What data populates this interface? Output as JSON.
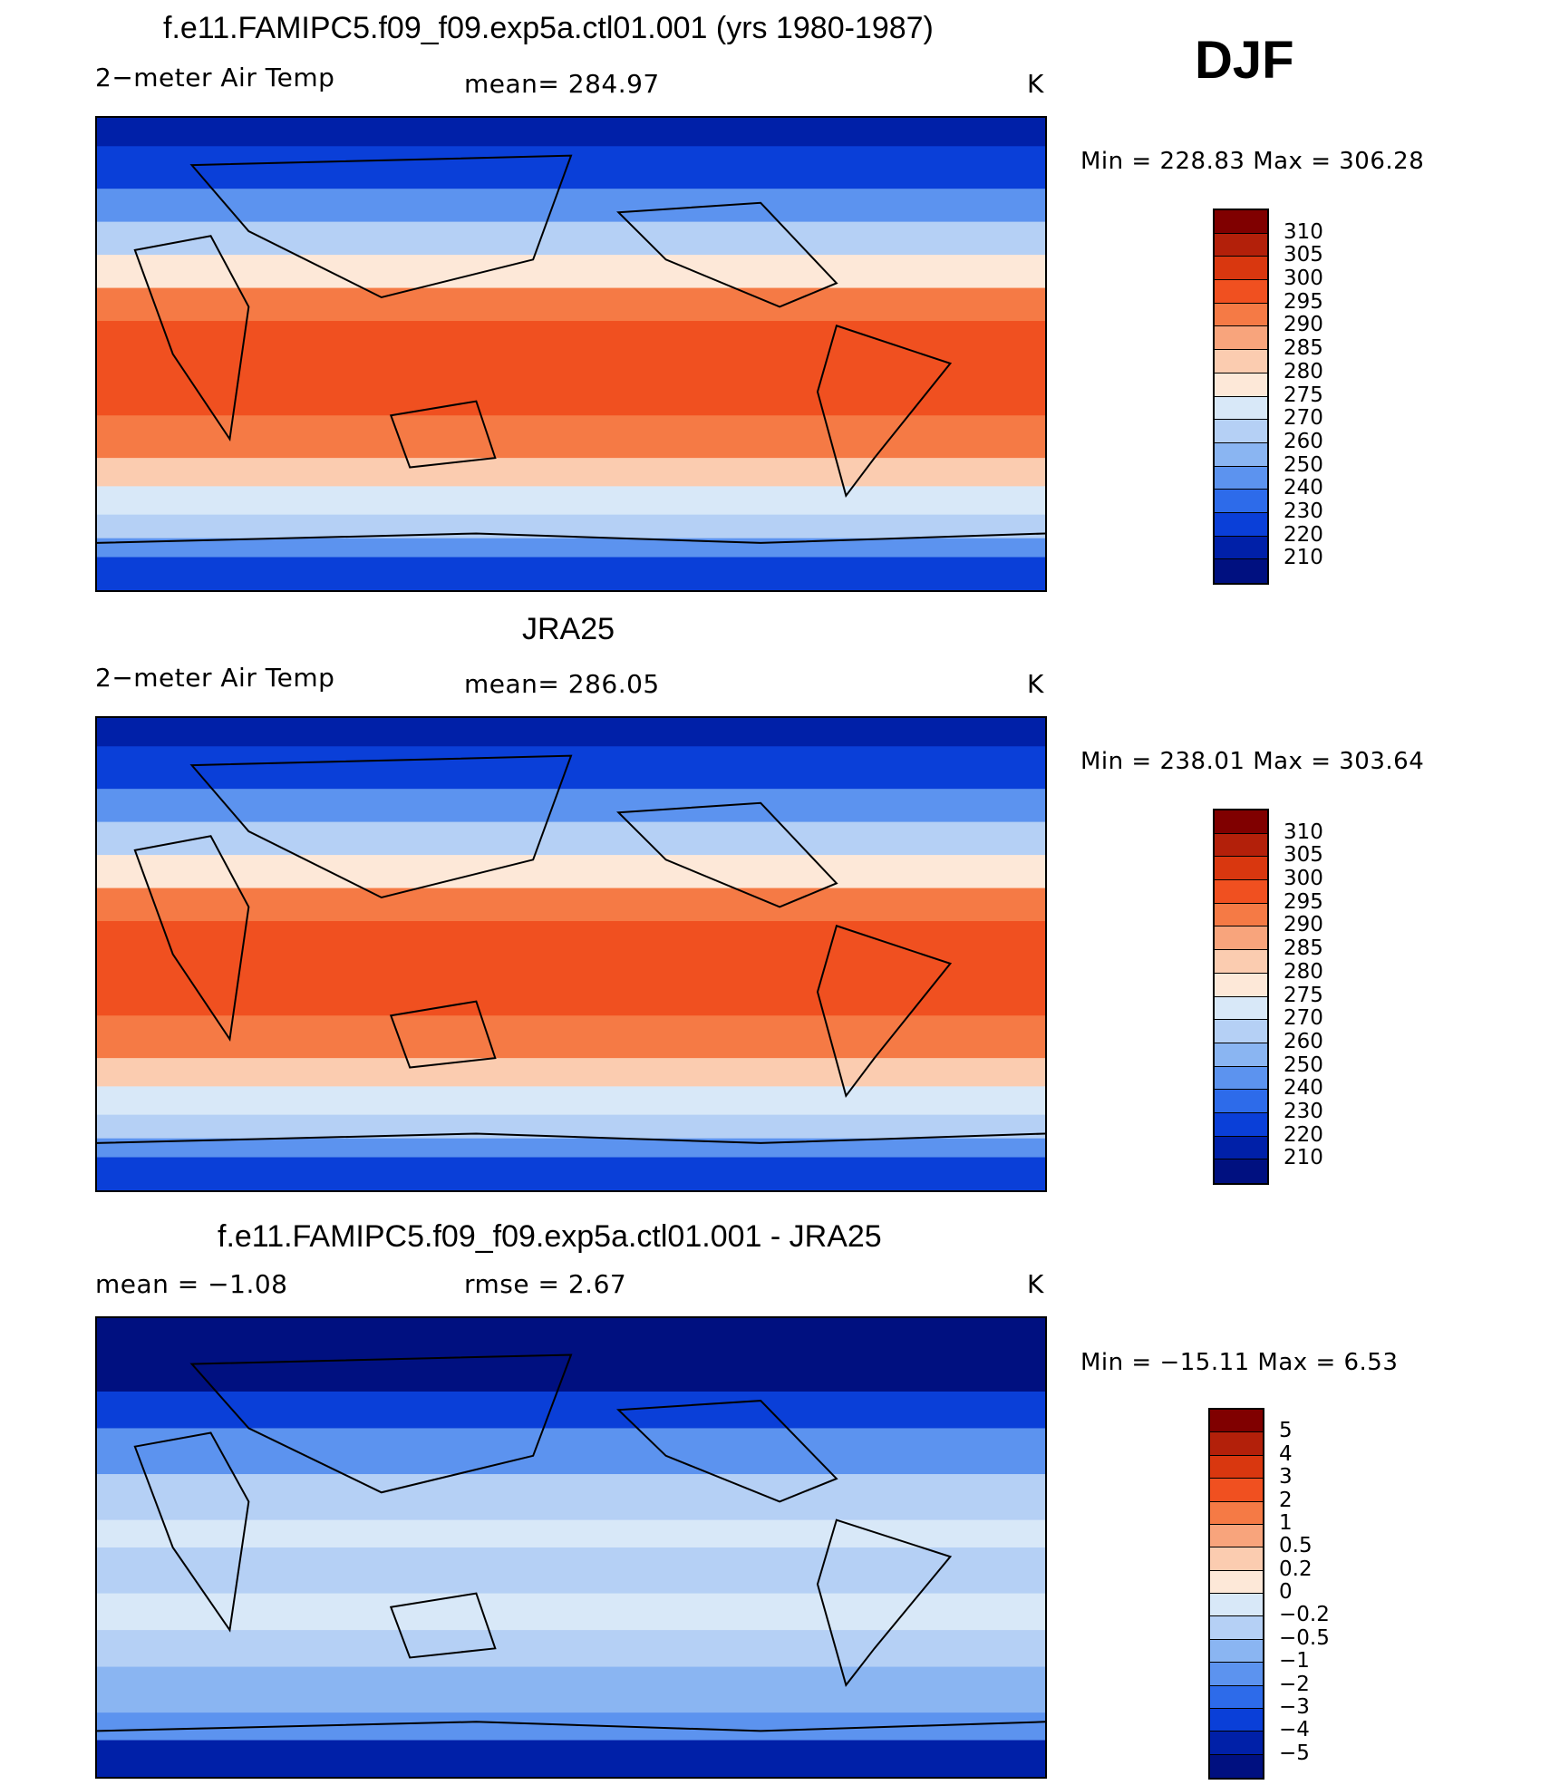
{
  "season": "DJF",
  "panels": [
    {
      "id": "model",
      "title": "f.e11.FAMIPC5.f09_f09.exp5a.ctl01.001 (yrs 1980-1987)",
      "left_label": "2−meter Air Temp",
      "center_label": "mean=  284.97",
      "units": "K",
      "minmax": "Min  =  228.83  Max  =  306.28",
      "colorbar": {
        "labels": [
          "310",
          "305",
          "300",
          "295",
          "290",
          "285",
          "280",
          "275",
          "270",
          "260",
          "250",
          "240",
          "230",
          "220",
          "210"
        ],
        "colors": [
          "#800000",
          "#b3200a",
          "#d9370f",
          "#f05020",
          "#f57a45",
          "#f8a47c",
          "#fbccb0",
          "#fde8d8",
          "#d8e8f8",
          "#b5d0f5",
          "#8ab5f2",
          "#5c93ef",
          "#2d6bea",
          "#0a3fd8",
          "#0020a8",
          "#001080"
        ]
      },
      "zonal_scheme": "mean"
    },
    {
      "id": "obs",
      "title": "JRA25",
      "left_label": "2−meter Air Temp",
      "center_label": "mean=  286.05",
      "units": "K",
      "minmax": "Min  =  238.01  Max  =  303.64",
      "colorbar": {
        "labels": [
          "310",
          "305",
          "300",
          "295",
          "290",
          "285",
          "280",
          "275",
          "270",
          "260",
          "250",
          "240",
          "230",
          "220",
          "210"
        ],
        "colors": [
          "#800000",
          "#b3200a",
          "#d9370f",
          "#f05020",
          "#f57a45",
          "#f8a47c",
          "#fbccb0",
          "#fde8d8",
          "#d8e8f8",
          "#b5d0f5",
          "#8ab5f2",
          "#5c93ef",
          "#2d6bea",
          "#0a3fd8",
          "#0020a8",
          "#001080"
        ]
      },
      "zonal_scheme": "mean"
    },
    {
      "id": "diff",
      "title": "f.e11.FAMIPC5.f09_f09.exp5a.ctl01.001 - JRA25",
      "left_label": "mean  =     −1.08",
      "center_label": "rmse  =     2.67",
      "units": "K",
      "minmax": "Min  =  −15.11  Max  =      6.53",
      "colorbar": {
        "labels": [
          "5",
          "4",
          "3",
          "2",
          "1",
          "0.5",
          "0.2",
          "0",
          "−0.2",
          "−0.5",
          "−1",
          "−2",
          "−3",
          "−4",
          "−5"
        ],
        "colors": [
          "#800000",
          "#b3200a",
          "#d9370f",
          "#f05020",
          "#f57a45",
          "#f8a47c",
          "#fbccb0",
          "#fde8d8",
          "#d8e8f8",
          "#b5d0f5",
          "#8ab5f2",
          "#5c93ef",
          "#2d6bea",
          "#0a3fd8",
          "#0020a8",
          "#001080"
        ]
      },
      "zonal_scheme": "diff"
    }
  ],
  "chart_data": [
    {
      "type": "heatmap",
      "title": "f.e11.FAMIPC5.f09_f09.exp5a.ctl01.001 (yrs 1980-1987)",
      "variable": "2-meter Air Temp",
      "units": "K",
      "mean": 284.97,
      "min": 228.83,
      "max": 306.28,
      "contour_levels": [
        210,
        220,
        230,
        240,
        250,
        260,
        270,
        275,
        280,
        285,
        290,
        295,
        300,
        305,
        310
      ]
    },
    {
      "type": "heatmap",
      "title": "JRA25",
      "variable": "2-meter Air Temp",
      "units": "K",
      "mean": 286.05,
      "min": 238.01,
      "max": 303.64,
      "contour_levels": [
        210,
        220,
        230,
        240,
        250,
        260,
        270,
        275,
        280,
        285,
        290,
        295,
        300,
        305,
        310
      ]
    },
    {
      "type": "heatmap",
      "title": "f.e11.FAMIPC5.f09_f09.exp5a.ctl01.001 - JRA25",
      "units": "K",
      "mean": -1.08,
      "rmse": 2.67,
      "min": -15.11,
      "max": 6.53,
      "contour_levels": [
        -5,
        -4,
        -3,
        -2,
        -1,
        -0.5,
        -0.2,
        0,
        0.2,
        0.5,
        1,
        2,
        3,
        4,
        5
      ]
    }
  ]
}
